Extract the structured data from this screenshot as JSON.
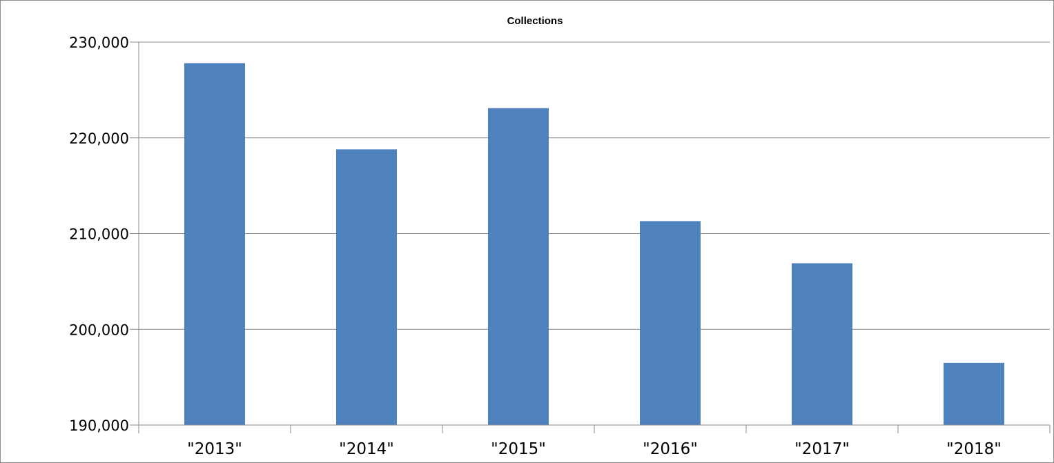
{
  "chart_data": {
    "type": "bar",
    "title": "Collections",
    "xlabel": "",
    "ylabel": "",
    "categories": [
      "\"2013\"",
      "\"2014\"",
      "\"2015\"",
      "\"2016\"",
      "\"2017\"",
      "\"2018\""
    ],
    "values": [
      227800,
      218800,
      223100,
      211300,
      206900,
      196500
    ],
    "ylim": [
      190000,
      230000
    ],
    "yticks": [
      190000,
      200000,
      210000,
      220000,
      230000
    ],
    "ytick_labels": [
      "190,000",
      "200,000",
      "210,000",
      "220,000",
      "230,000"
    ],
    "grid": true,
    "legend": "none",
    "bar_color": "#4f81bd"
  }
}
